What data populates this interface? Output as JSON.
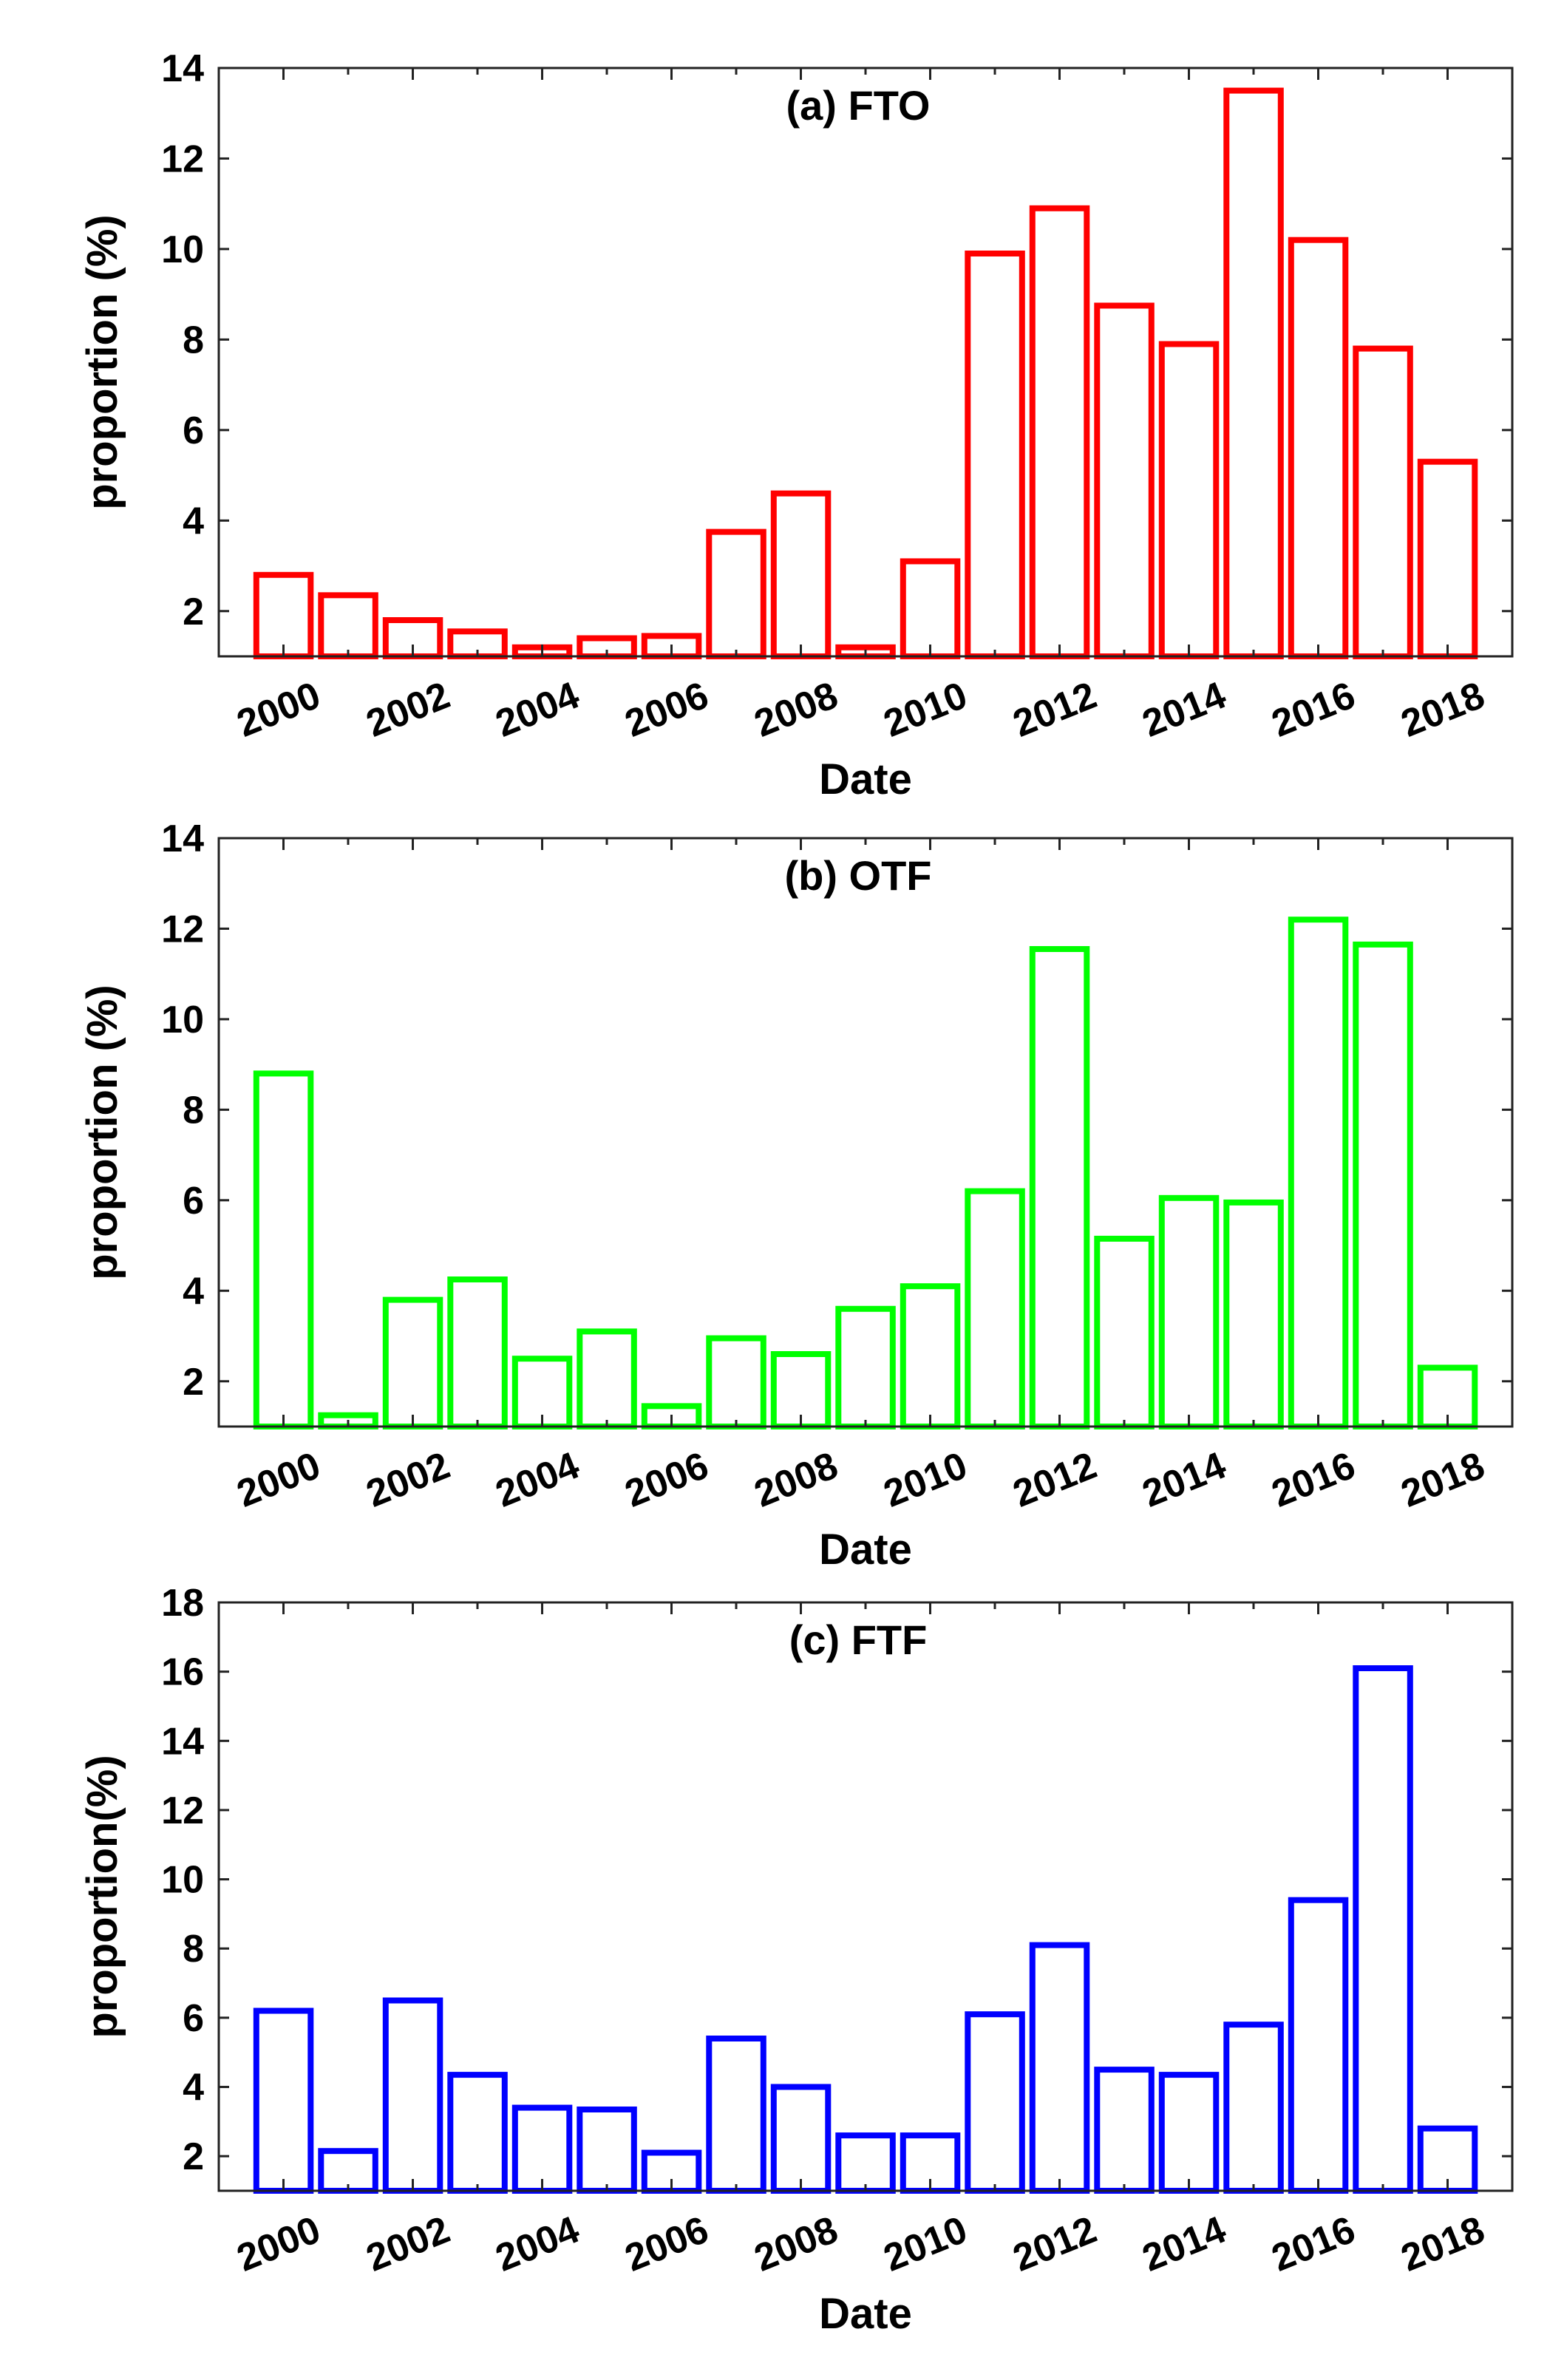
{
  "chart_data": [
    {
      "type": "bar",
      "title": "(a) FTO",
      "xlabel": "Date",
      "ylabel": "proportion (%)",
      "ylim": [
        1,
        14
      ],
      "yticks": [
        2,
        4,
        6,
        8,
        10,
        12,
        14
      ],
      "xtick_labels": [
        "2000",
        "2002",
        "2004",
        "2006",
        "2008",
        "2010",
        "2012",
        "2014",
        "2016",
        "2018"
      ],
      "categories": [
        "2000",
        "2001",
        "2002",
        "2003",
        "2004",
        "2005",
        "2006",
        "2007",
        "2008",
        "2009",
        "2010",
        "2011",
        "2012",
        "2013",
        "2014",
        "2015",
        "2016",
        "2017",
        "2018"
      ],
      "values": [
        2.8,
        2.35,
        1.8,
        1.55,
        1.2,
        1.4,
        1.45,
        3.75,
        4.6,
        1.2,
        3.1,
        9.9,
        10.9,
        8.75,
        7.9,
        13.5,
        10.2,
        7.8,
        5.3
      ],
      "color": "#ff0000",
      "grid": false
    },
    {
      "type": "bar",
      "title": "(b) OTF",
      "xlabel": "Date",
      "ylabel": "proportion (%)",
      "ylim": [
        1,
        14
      ],
      "yticks": [
        2,
        4,
        6,
        8,
        10,
        12,
        14
      ],
      "xtick_labels": [
        "2000",
        "2002",
        "2004",
        "2006",
        "2008",
        "2010",
        "2012",
        "2014",
        "2016",
        "2018"
      ],
      "categories": [
        "2000",
        "2001",
        "2002",
        "2003",
        "2004",
        "2005",
        "2006",
        "2007",
        "2008",
        "2009",
        "2010",
        "2011",
        "2012",
        "2013",
        "2014",
        "2015",
        "2016",
        "2017",
        "2018"
      ],
      "values": [
        8.8,
        1.25,
        3.8,
        4.25,
        2.5,
        3.1,
        1.45,
        2.95,
        2.6,
        3.6,
        4.1,
        6.2,
        11.55,
        5.15,
        6.05,
        5.95,
        12.2,
        11.65,
        2.3
      ],
      "color": "#00ff00",
      "grid": false
    },
    {
      "type": "bar",
      "title": "(c) FTF",
      "xlabel": "Date",
      "ylabel": "proportion(%)",
      "ylim": [
        1,
        18
      ],
      "yticks": [
        2,
        4,
        6,
        8,
        10,
        12,
        14,
        16,
        18
      ],
      "xtick_labels": [
        "2000",
        "2002",
        "2004",
        "2006",
        "2008",
        "2010",
        "2012",
        "2014",
        "2016",
        "2018"
      ],
      "categories": [
        "2000",
        "2001",
        "2002",
        "2003",
        "2004",
        "2005",
        "2006",
        "2007",
        "2008",
        "2009",
        "2010",
        "2011",
        "2012",
        "2013",
        "2014",
        "2015",
        "2016",
        "2017",
        "2018"
      ],
      "values": [
        6.2,
        2.15,
        6.5,
        4.35,
        3.4,
        3.35,
        2.1,
        5.4,
        4.0,
        2.6,
        2.6,
        6.1,
        8.1,
        4.5,
        4.35,
        5.8,
        9.4,
        16.1,
        2.8
      ],
      "color": "#0000ff",
      "grid": false
    }
  ]
}
